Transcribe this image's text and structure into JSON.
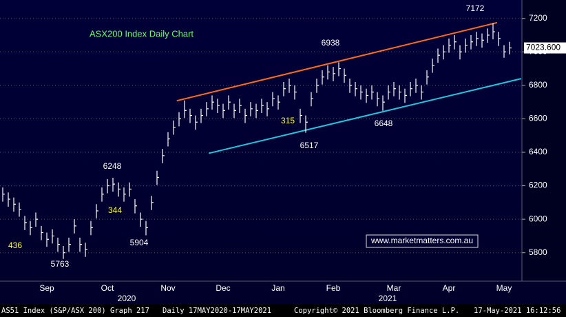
{
  "chart_data": {
    "type": "ohlc",
    "title": "ASX200 Index Daily Chart",
    "categories": [
      null,
      null,
      null,
      null,
      null,
      null,
      null,
      null,
      "Sep",
      null,
      null,
      null,
      null,
      null,
      null,
      null,
      null,
      null,
      null,
      "Oct",
      null,
      null,
      null,
      null,
      null,
      null,
      null,
      null,
      null,
      null,
      "Nov",
      null,
      null,
      null,
      null,
      null,
      null,
      null,
      null,
      null,
      "Dec",
      null,
      null,
      null,
      null,
      null,
      null,
      null,
      null,
      null,
      "Jan",
      null,
      null,
      null,
      null,
      null,
      null,
      null,
      null,
      null,
      "Feb",
      null,
      null,
      null,
      null,
      null,
      null,
      null,
      null,
      null,
      null,
      "Mar",
      null,
      null,
      null,
      null,
      null,
      null,
      null,
      null,
      null,
      "Apr",
      null,
      null,
      null,
      null,
      null,
      null,
      null,
      null,
      null,
      "May",
      null
    ],
    "close": [
      6150,
      6120,
      6090,
      6060,
      5980,
      5950,
      6000,
      5920,
      5880,
      5900,
      5850,
      5800,
      5850,
      5960,
      5850,
      5820,
      5950,
      6050,
      6150,
      6200,
      6210,
      6180,
      6150,
      6180,
      6080,
      6000,
      5950,
      6100,
      6250,
      6380,
      6480,
      6550,
      6600,
      6650,
      6620,
      6580,
      6620,
      6660,
      6700,
      6680,
      6650,
      6700,
      6650,
      6680,
      6620,
      6660,
      6650,
      6680,
      6660,
      6720,
      6700,
      6780,
      6800,
      6760,
      6620,
      6580,
      6720,
      6800,
      6850,
      6880,
      6870,
      6900,
      6860,
      6800,
      6780,
      6760,
      6740,
      6760,
      6720,
      6700,
      6760,
      6780,
      6760,
      6740,
      6780,
      6800,
      6760,
      6850,
      6920,
      6980,
      7000,
      7040,
      7060,
      7000,
      7040,
      7060,
      7080,
      7070,
      7100,
      7120,
      7080,
      7000,
      7023.6
    ],
    "high": [
      6190,
      6160,
      6130,
      6100,
      6020,
      5990,
      6040,
      5960,
      5920,
      5940,
      5890,
      5840,
      5890,
      6000,
      5890,
      5860,
      5990,
      6090,
      6190,
      6240,
      6248,
      6220,
      6190,
      6220,
      6120,
      6040,
      5990,
      6140,
      6290,
      6420,
      6520,
      6590,
      6640,
      6710,
      6660,
      6620,
      6660,
      6700,
      6740,
      6720,
      6690,
      6740,
      6690,
      6720,
      6660,
      6700,
      6690,
      6720,
      6700,
      6760,
      6740,
      6820,
      6840,
      6800,
      6660,
      6620,
      6760,
      6840,
      6890,
      6920,
      6910,
      6938,
      6900,
      6840,
      6820,
      6800,
      6780,
      6800,
      6760,
      6740,
      6800,
      6820,
      6800,
      6780,
      6820,
      6840,
      6800,
      6890,
      6960,
      7020,
      7040,
      7080,
      7100,
      7040,
      7080,
      7100,
      7120,
      7110,
      7140,
      7172,
      7120,
      7040,
      7060
    ],
    "low": [
      6105,
      6075,
      6045,
      6015,
      5935,
      5905,
      5955,
      5875,
      5835,
      5855,
      5805,
      5763,
      5805,
      5915,
      5805,
      5775,
      5905,
      6005,
      6105,
      6155,
      6165,
      6135,
      6105,
      6135,
      6035,
      5955,
      5904,
      6055,
      6205,
      6335,
      6435,
      6505,
      6555,
      6605,
      6575,
      6535,
      6575,
      6615,
      6655,
      6635,
      6605,
      6655,
      6605,
      6635,
      6575,
      6615,
      6605,
      6635,
      6615,
      6675,
      6655,
      6735,
      6755,
      6715,
      6575,
      6517,
      6675,
      6755,
      6805,
      6835,
      6825,
      6855,
      6815,
      6755,
      6735,
      6715,
      6695,
      6715,
      6675,
      6648,
      6715,
      6735,
      6715,
      6695,
      6735,
      6755,
      6715,
      6805,
      6875,
      6935,
      6955,
      6995,
      7015,
      6955,
      6995,
      7015,
      7035,
      7025,
      7055,
      7075,
      7035,
      6965,
      6985
    ],
    "color": "#ffffff",
    "ylim": [
      5630,
      7310
    ],
    "yticks": [
      5800,
      6000,
      6200,
      6400,
      6600,
      6800,
      7000,
      7200
    ],
    "grid": true,
    "last_price": {
      "value": 7023.6,
      "label": "7023.600"
    },
    "trend_lines": [
      {
        "color": "#ff6a1a",
        "x": [
          31.6,
          89.75
        ],
        "values": [
          6708,
          7175
        ]
      },
      {
        "color": "#1ec8e0",
        "x": [
          37.4,
          94.1
        ],
        "values": [
          6394,
          6840
        ]
      }
    ],
    "annotations": [
      "7172",
      "6938",
      "6648",
      "6517",
      "6248",
      "5904",
      "5763",
      "436",
      "344",
      "315"
    ],
    "watermark": "www.marketmatters.com.au",
    "year_labels": [
      "2020",
      "2021"
    ],
    "footer": [
      "AS51 Index (S&P/ASX 200) Graph 217",
      "Daily 17MAY2020-17MAY2021",
      "Copyright© 2021 Bloomberg Finance L.P.",
      "17-May-2021 16:12:56"
    ]
  }
}
